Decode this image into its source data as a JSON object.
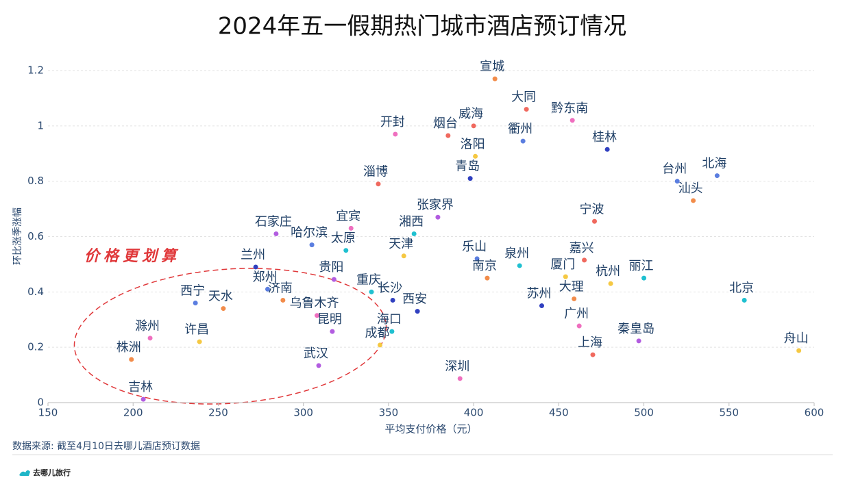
{
  "chart_data": {
    "type": "scatter",
    "title": "2024年五一假期热门城市酒店预订情况",
    "x_label": "平均支付价格（元）",
    "y_label": "环比涨季涨幅",
    "annotation": "价格更划算",
    "source": "数据来源: 截至4月10日去哪儿酒店预订数据",
    "brand": "去哪儿旅行",
    "xlim": [
      150,
      600
    ],
    "xticks": [
      150,
      200,
      250,
      300,
      350,
      400,
      450,
      500,
      550,
      600
    ],
    "ylim": [
      0,
      1.2
    ],
    "yticks": [
      0,
      0.2,
      0.4,
      0.6,
      0.8,
      1,
      1.2
    ],
    "grid": true,
    "labels": [
      "宣城",
      "大同",
      "黔东南",
      "威海",
      "烟台",
      "开封",
      "衢州",
      "洛阳",
      "桂林",
      "青岛",
      "淄博",
      "台州",
      "北海",
      "汕头",
      "宁波",
      "张家界",
      "宜宾",
      "石家庄",
      "湘西",
      "哈尔滨",
      "太原",
      "天津",
      "乐山",
      "嘉兴",
      "泉州",
      "兰州",
      "厦门",
      "南京",
      "丽江",
      "贵阳",
      "杭州",
      "郑州",
      "重庆",
      "长沙",
      "济南",
      "大理",
      "北京",
      "西宁",
      "苏州",
      "天水",
      "西安",
      "乌鲁木齐",
      "广州",
      "昆明",
      "海口",
      "滁州",
      "秦皇岛",
      "许昌",
      "成都",
      "舟山",
      "株洲",
      "上海",
      "武汉",
      "深圳",
      "吉林"
    ],
    "x": [
      412.5,
      431,
      458,
      400,
      385,
      354,
      429,
      401,
      478.5,
      398,
      344,
      519.6,
      543,
      529,
      471,
      379,
      328,
      284,
      365,
      305,
      325,
      359,
      402,
      465,
      427,
      272,
      454,
      408,
      500,
      318,
      480.5,
      279,
      340,
      352.5,
      288,
      459,
      559,
      236.6,
      440,
      253,
      367,
      308,
      462,
      317,
      352,
      210,
      497,
      239,
      345,
      591,
      199,
      470,
      309,
      392,
      206
    ],
    "values": [
      1.17,
      1.06,
      1.02,
      1.0,
      0.965,
      0.97,
      0.945,
      0.89,
      0.915,
      0.81,
      0.79,
      0.8,
      0.82,
      0.73,
      0.655,
      0.67,
      0.63,
      0.61,
      0.61,
      0.57,
      0.55,
      0.53,
      0.52,
      0.515,
      0.495,
      0.49,
      0.455,
      0.45,
      0.45,
      0.445,
      0.43,
      0.41,
      0.4,
      0.37,
      0.37,
      0.375,
      0.37,
      0.36,
      0.35,
      0.34,
      0.33,
      0.315,
      0.277,
      0.257,
      0.257,
      0.233,
      0.223,
      0.22,
      0.208,
      0.188,
      0.156,
      0.173,
      0.134,
      0.087,
      0.012
    ],
    "colors": [
      "#f28c4a",
      "#f0695e",
      "#ef6fbf",
      "#f0695e",
      "#f0695e",
      "#ef6fbf",
      "#5b7ee0",
      "#f5c842",
      "#3040c0",
      "#3040c0",
      "#f0695e",
      "#5b7ee0",
      "#5b7ee0",
      "#f28c4a",
      "#f0695e",
      "#b25ce0",
      "#ef6fbf",
      "#b25ce0",
      "#1fc0d0",
      "#5b7ee0",
      "#1fc0d0",
      "#f5c842",
      "#5b7ee0",
      "#f0695e",
      "#1fc0d0",
      "#3040c0",
      "#f5c842",
      "#f28c4a",
      "#1fc0d0",
      "#b25ce0",
      "#f5c842",
      "#5b7ee0",
      "#1fc0d0",
      "#3040c0",
      "#f28c4a",
      "#f28c4a",
      "#1fc0d0",
      "#5b7ee0",
      "#3040c0",
      "#f28c4a",
      "#3040c0",
      "#ef6fbf",
      "#ef6fbf",
      "#b25ce0",
      "#1fc0d0",
      "#ef6fbf",
      "#b25ce0",
      "#f5c842",
      "#f5c842",
      "#f5c842",
      "#f28c4a",
      "#f0695e",
      "#b25ce0",
      "#ef6fbf",
      "#b25ce0"
    ]
  }
}
